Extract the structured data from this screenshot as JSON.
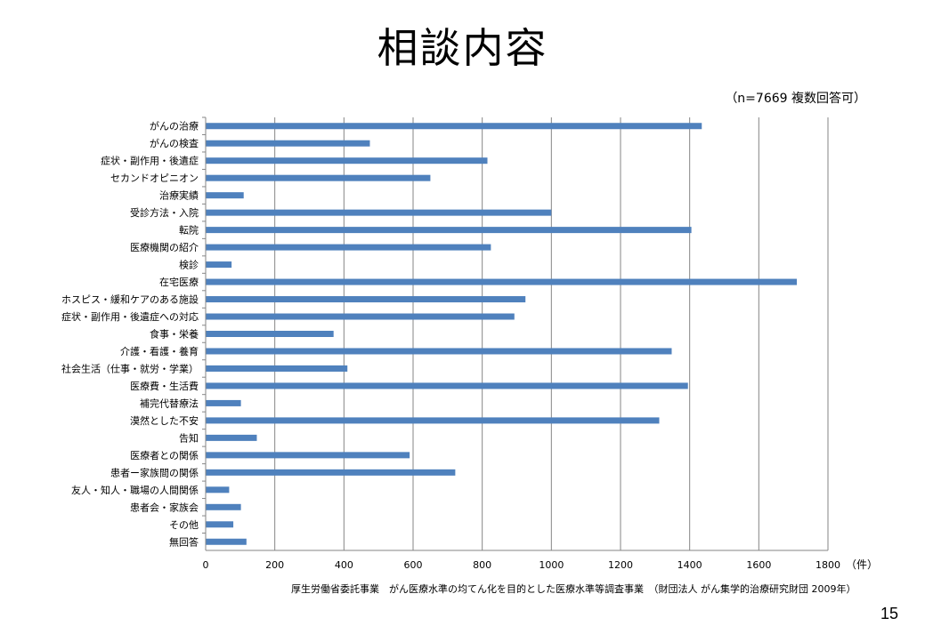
{
  "slide": {
    "title": "相談内容",
    "note": "（n=7669 複数回答可）",
    "footer": "厚生労働省委託事業　がん医療水準の均てん化を目的とした医療水準等調査事業　（財団法人 がん集学的治療研究財団 2009年）",
    "page_number": "15"
  },
  "chart_data": {
    "type": "bar",
    "orientation": "horizontal",
    "categories": [
      "がんの治療",
      "がんの検査",
      "症状・副作用・後遺症",
      "セカンドオピニオン",
      "治療実績",
      "受診方法・入院",
      "転院",
      "医療機関の紹介",
      "検診",
      "在宅医療",
      "ホスピス・緩和ケアのある施設",
      "症状・副作用・後遺症への対応",
      "食事・栄養",
      "介護・看護・養育",
      "社会生活（仕事・就労・学業）",
      "医療費・生活費",
      "補完代替療法",
      "漠然とした不安",
      "告知",
      "医療者との関係",
      "患者ー家族間の関係",
      "友人・知人・職場の人間関係",
      "患者会・家族会",
      "その他",
      "無回答"
    ],
    "values": [
      1435,
      475,
      815,
      650,
      110,
      1000,
      1405,
      825,
      75,
      1710,
      925,
      893,
      370,
      1348,
      410,
      1395,
      102,
      1312,
      148,
      590,
      722,
      68,
      102,
      80,
      118
    ],
    "xlim": [
      0,
      1800
    ],
    "xticks": [
      0,
      200,
      400,
      600,
      800,
      1000,
      1200,
      1400,
      1600,
      1800
    ],
    "xunit": "（件）",
    "grid": true,
    "bar_color": "#4f81bd"
  }
}
